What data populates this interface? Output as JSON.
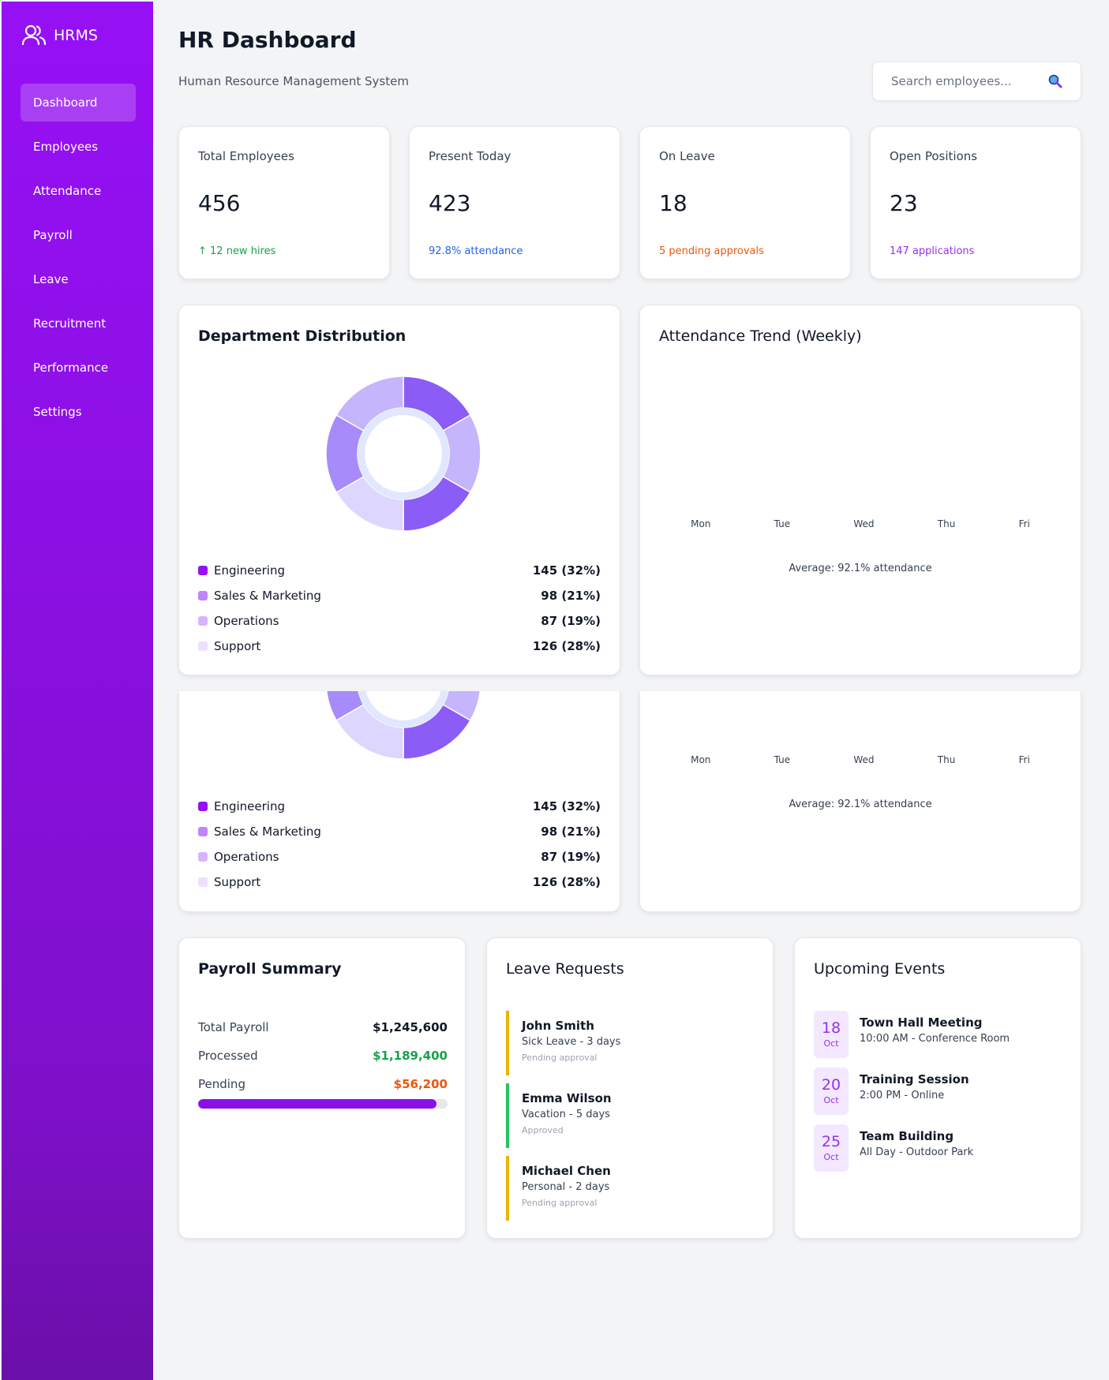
{
  "app": {
    "name": "HRMS"
  },
  "sidebar": {
    "items": [
      {
        "label": "Dashboard",
        "active": true
      },
      {
        "label": "Employees"
      },
      {
        "label": "Attendance"
      },
      {
        "label": "Payroll"
      },
      {
        "label": "Leave"
      },
      {
        "label": "Recruitment"
      },
      {
        "label": "Performance"
      },
      {
        "label": "Settings"
      }
    ]
  },
  "header": {
    "title": "HR Dashboard",
    "subtitle": "Human Resource Management System",
    "search_placeholder": "Search employees..."
  },
  "stats": [
    {
      "label": "Total Employees",
      "value": "456",
      "sub": "↑ 12 new hires",
      "sub_color": "#16a34a"
    },
    {
      "label": "Present Today",
      "value": "423",
      "sub": "92.8% attendance",
      "sub_color": "#2563eb"
    },
    {
      "label": "On Leave",
      "value": "18",
      "sub": "5 pending approvals",
      "sub_color": "#ea580c"
    },
    {
      "label": "Open Positions",
      "value": "23",
      "sub": "147 applications",
      "sub_color": "#9333ea"
    }
  ],
  "department": {
    "title": "Department Distribution",
    "legend": [
      {
        "name": "Engineering",
        "value": "145 (32%)",
        "color": "#9610f5"
      },
      {
        "name": "Sales & Marketing",
        "value": "98 (21%)",
        "color": "#c084fc"
      },
      {
        "name": "Operations",
        "value": "87 (19%)",
        "color": "#d8b4fe"
      },
      {
        "name": "Support",
        "value": "126 (28%)",
        "color": "#ede0fe"
      }
    ],
    "donut_colors": [
      "#8b5cf6",
      "#c4b5fd",
      "#8b5cf6",
      "#ddd6fe",
      "#a78bfa",
      "#c4b5fd"
    ],
    "donut_inner_ring": "#e0e7ff"
  },
  "attendance": {
    "title": "Attendance Trend (Weekly)",
    "days": [
      "Mon",
      "Tue",
      "Wed",
      "Thu",
      "Fri"
    ],
    "average": "Average: 92.1% attendance"
  },
  "payroll": {
    "title": "Payroll Summary",
    "rows": [
      {
        "label": "Total Payroll",
        "value": "$1,245,600",
        "color": "#111827"
      },
      {
        "label": "Processed",
        "value": "$1,189,400",
        "color": "#16a34a"
      },
      {
        "label": "Pending",
        "value": "$56,200",
        "color": "#ea580c"
      }
    ],
    "processed_fraction": 0.955
  },
  "leave": {
    "title": "Leave Requests",
    "items": [
      {
        "name": "John Smith",
        "type": "Sick Leave - 3 days",
        "status": "Pending approval",
        "color": "#eab308"
      },
      {
        "name": "Emma Wilson",
        "type": "Vacation - 5 days",
        "status": "Approved",
        "color": "#22c55e"
      },
      {
        "name": "Michael Chen",
        "type": "Personal - 2 days",
        "status": "Pending approval",
        "color": "#eab308"
      }
    ]
  },
  "events": {
    "title": "Upcoming Events",
    "items": [
      {
        "day": "18",
        "month": "Oct",
        "title": "Town Hall Meeting",
        "detail": "10:00 AM - Conference Room"
      },
      {
        "day": "20",
        "month": "Oct",
        "title": "Training Session",
        "detail": "2:00 PM - Online"
      },
      {
        "day": "25",
        "month": "Oct",
        "title": "Team Building",
        "detail": "All Day - Outdoor Park"
      }
    ]
  }
}
